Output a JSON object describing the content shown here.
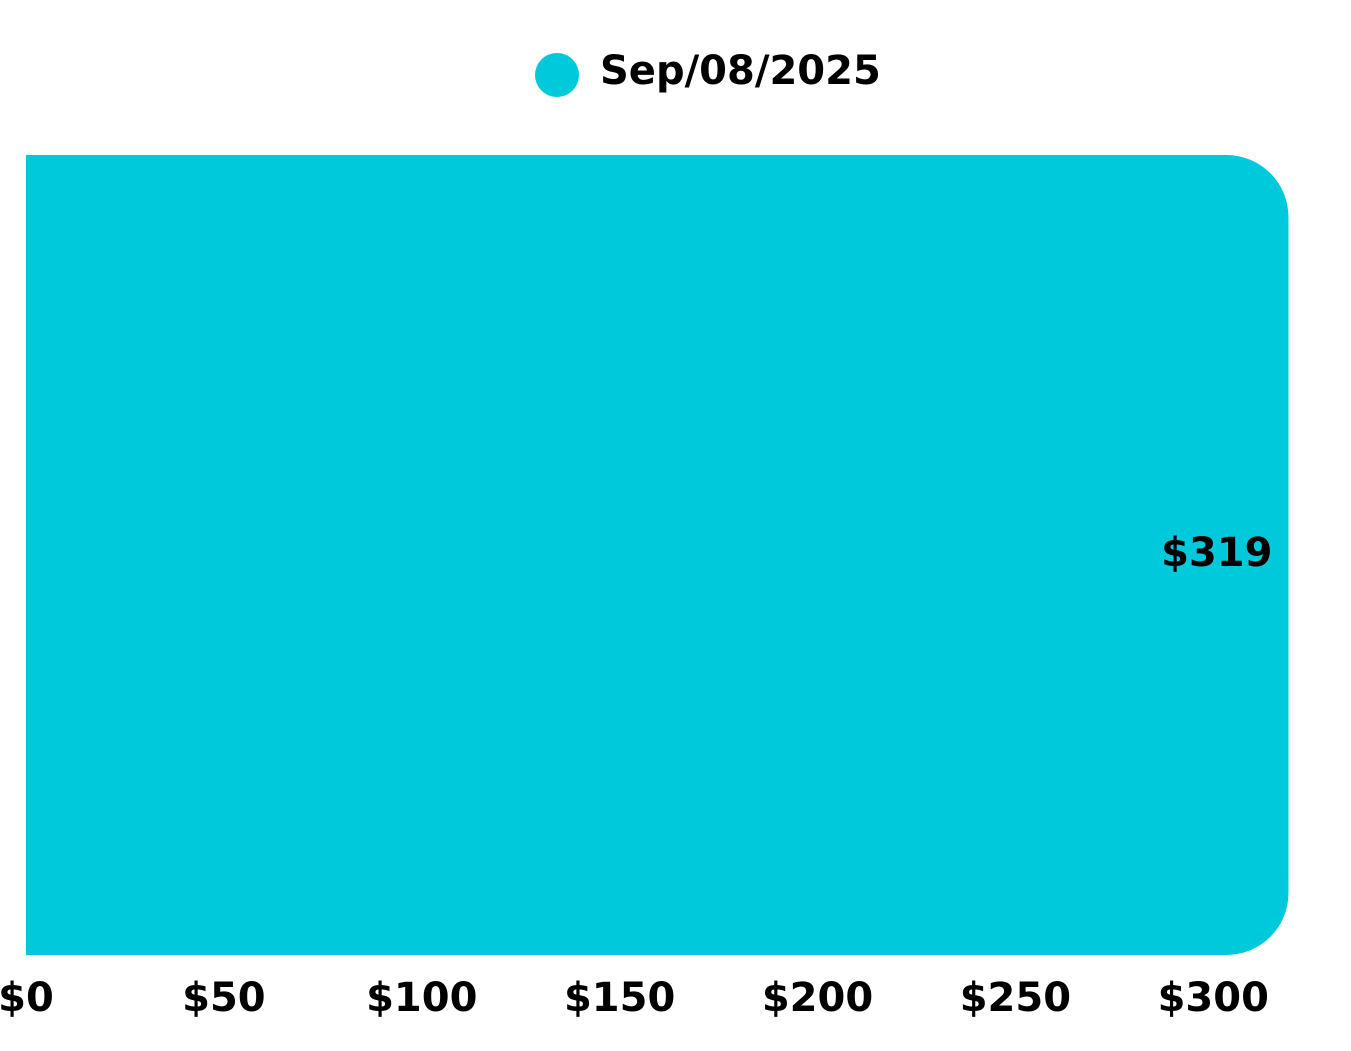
{
  "chart_data": {
    "type": "hbar",
    "categories": [
      null
    ],
    "series": [
      {
        "name": "Sep/08/2025",
        "color": "#00c9db",
        "values": [
          319
        ],
        "value_labels": [
          "$319"
        ]
      }
    ],
    "xlim": [
      0,
      330
    ],
    "xticks": [
      {
        "value": 0,
        "label": "$0"
      },
      {
        "value": 50,
        "label": "$50"
      },
      {
        "value": 100,
        "label": "$100"
      },
      {
        "value": 150,
        "label": "$150"
      },
      {
        "value": 200,
        "label": "$200"
      },
      {
        "value": 250,
        "label": "$250"
      },
      {
        "value": 300,
        "label": "$300"
      }
    ],
    "grid": false
  }
}
